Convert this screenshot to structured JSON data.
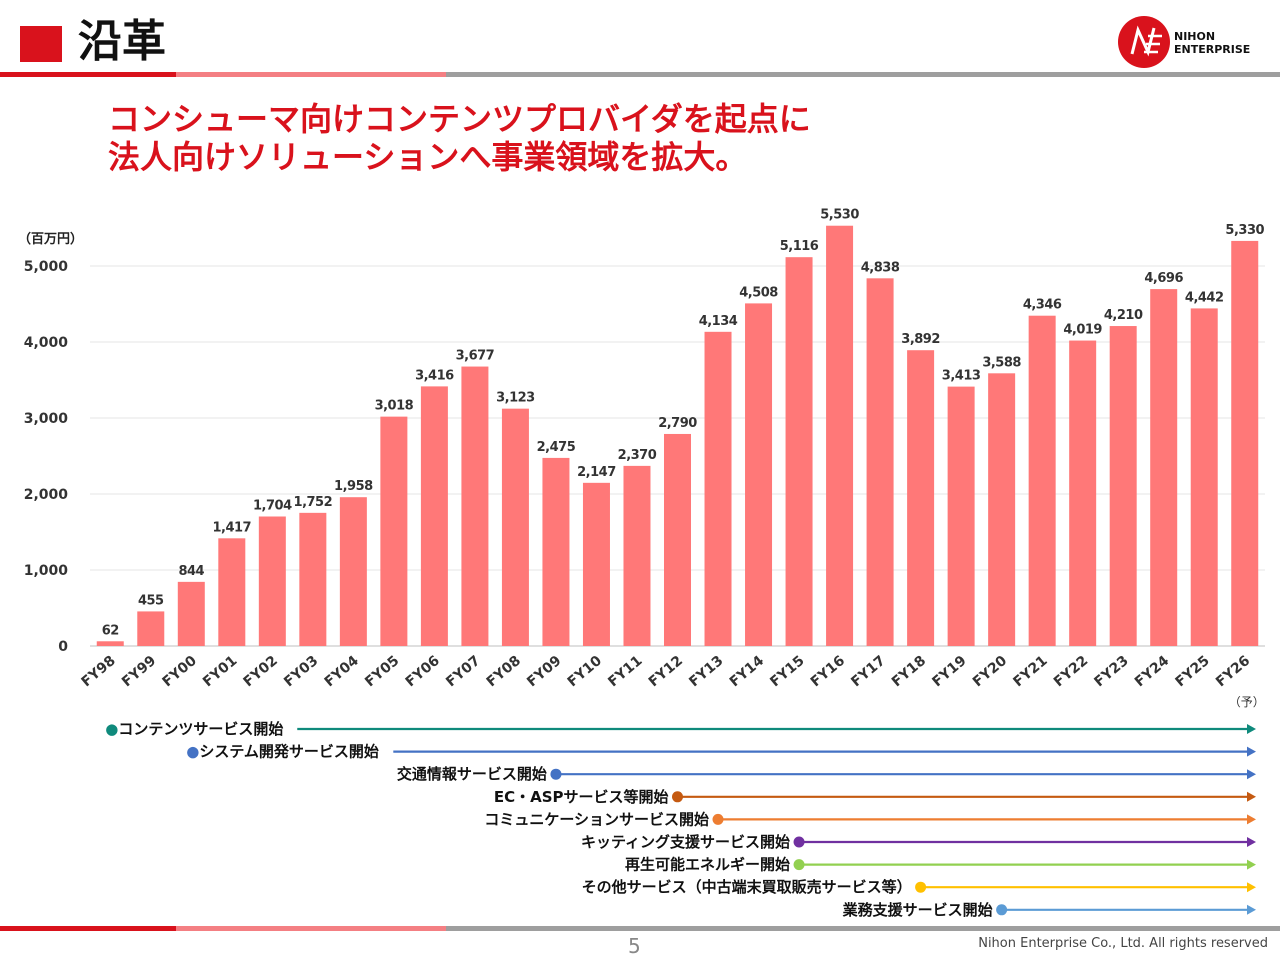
{
  "header": {
    "title": "沿革",
    "logo_text_1": "NIHON",
    "logo_text_2": "ENTERPRISE"
  },
  "subtitle": {
    "line1": "コンシューマ向けコンテンツプロバイダを起点に",
    "line2": "法人向けソリューションへ事業領域を拡大。"
  },
  "colors": {
    "accent": "#d9121c",
    "accent_light": "#f47f83",
    "bar": "#ff7878",
    "gray_line": "#9e9e9e"
  },
  "chart_data": {
    "type": "bar",
    "unit_label": "（百万円）",
    "categories": [
      "FY98",
      "FY99",
      "FY00",
      "FY01",
      "FY02",
      "FY03",
      "FY04",
      "FY05",
      "FY06",
      "FY07",
      "FY08",
      "FY09",
      "FY10",
      "FY11",
      "FY12",
      "FY13",
      "FY14",
      "FY15",
      "FY16",
      "FY17",
      "FY18",
      "FY19",
      "FY20",
      "FY21",
      "FY22",
      "FY23",
      "FY24",
      "FY25",
      "FY26"
    ],
    "values": [
      62,
      455,
      844,
      1417,
      1704,
      1752,
      1958,
      3018,
      3416,
      3677,
      3123,
      2475,
      2147,
      2370,
      2790,
      4134,
      4508,
      5116,
      5530,
      4838,
      3892,
      3413,
      3588,
      4346,
      4019,
      4210,
      4696,
      4442,
      5330
    ],
    "data_labels": [
      "62",
      "455",
      "844",
      "1,417",
      "1,704",
      "1,752",
      "1,958",
      "3,018",
      "3,416",
      "3,677",
      "3,123",
      "2,475",
      "2,147",
      "2,370",
      "2,790",
      "4,134",
      "4,508",
      "5,116",
      "5,530",
      "4,838",
      "3,892",
      "3,413",
      "3,588",
      "4,346",
      "4,019",
      "4,210",
      "4,696",
      "4,442",
      "5,330"
    ],
    "y_ticks": [
      0,
      1000,
      2000,
      3000,
      4000,
      5000
    ],
    "y_tick_labels": [
      "0",
      "1,000",
      "2,000",
      "3,000",
      "4,000",
      "5,000"
    ],
    "ylim": [
      0,
      5500
    ],
    "forecast_note": "（予）",
    "grid": true
  },
  "timeline": [
    {
      "label": "●コンテンツサービス開始",
      "dot": false,
      "color": "#0f8a7c",
      "start": "FY98",
      "lead_dot": true
    },
    {
      "label": "●システム開発サービス開始",
      "dot": false,
      "color": "#4472c4",
      "start": "FY00",
      "lead_dot": true
    },
    {
      "label": "交通情報サービス開始",
      "dot": true,
      "color": "#4472c4",
      "start": "FY09"
    },
    {
      "label": "EC・ASPサービス等開始",
      "dot": true,
      "color": "#c55a11",
      "start": "FY12"
    },
    {
      "label": "コミュニケーションサービス開始",
      "dot": true,
      "color": "#ed7d31",
      "start": "FY13"
    },
    {
      "label": "キッティング支援サービス開始",
      "dot": true,
      "color": "#7030a0",
      "start": "FY15"
    },
    {
      "label": "再生可能エネルギー開始",
      "dot": true,
      "color": "#92d050",
      "start": "FY15"
    },
    {
      "label": "その他サービス（中古端末買取販売サービス等）",
      "dot": true,
      "color": "#ffc000",
      "start": "FY18"
    },
    {
      "label": "業務支援サービス開始",
      "dot": true,
      "color": "#5b9bd5",
      "start": "FY20"
    }
  ],
  "footer": {
    "page_number": "5",
    "copyright": "Nihon Enterprise Co., Ltd. All rights reserved"
  }
}
